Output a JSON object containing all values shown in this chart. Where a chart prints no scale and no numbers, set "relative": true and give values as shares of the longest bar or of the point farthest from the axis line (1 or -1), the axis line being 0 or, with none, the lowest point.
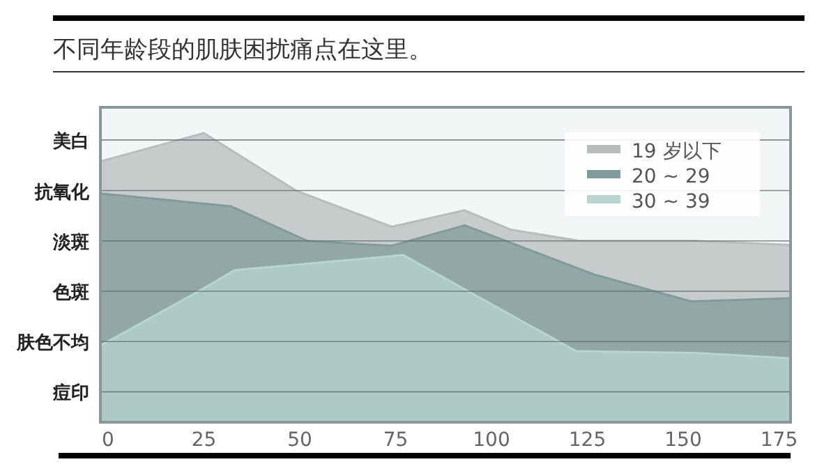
{
  "chart_data": {
    "type": "area",
    "title": "不同年龄段的肌肤困扰痛点在这里。",
    "xlim": [
      -2,
      178
    ],
    "xticks": [
      0,
      25,
      50,
      75,
      100,
      125,
      150,
      175
    ],
    "relative": true,
    "legend": "top right",
    "ref_lines": [
      {
        "axis": "y",
        "value": 0.105,
        "label": "痘印"
      },
      {
        "axis": "y",
        "value": 0.279,
        "label": "肤色不均"
      },
      {
        "axis": "y",
        "value": 0.453,
        "label": "色斑"
      },
      {
        "axis": "y",
        "value": 0.627,
        "label": "淡斑"
      },
      {
        "axis": "y",
        "value": 0.801,
        "label": "抗氧化"
      },
      {
        "axis": "y",
        "value": 0.976,
        "label": "美白"
      }
    ],
    "series": [
      {
        "name": "19 岁以下",
        "color": "#b9bcbd",
        "x": [
          -2,
          25,
          49,
          74,
          93,
          105,
          123,
          153,
          178
        ],
        "values": [
          0.902,
          1,
          0.801,
          0.676,
          0.733,
          0.666,
          0.627,
          0.627,
          0.613
        ]
      },
      {
        "name": "20 ~ 29",
        "color": "#7f9c9a",
        "x": [
          -2,
          32,
          52,
          74,
          93,
          127,
          152,
          178
        ],
        "values": [
          0.791,
          0.747,
          0.627,
          0.61,
          0.681,
          0.51,
          0.418,
          0.429
        ]
      },
      {
        "name": "30 ~ 39",
        "color": "#b7d6d2",
        "x": [
          -2,
          25,
          33,
          77,
          122,
          153,
          178
        ],
        "values": [
          0.265,
          0.463,
          0.526,
          0.578,
          0.246,
          0.24,
          0.221
        ]
      }
    ]
  }
}
